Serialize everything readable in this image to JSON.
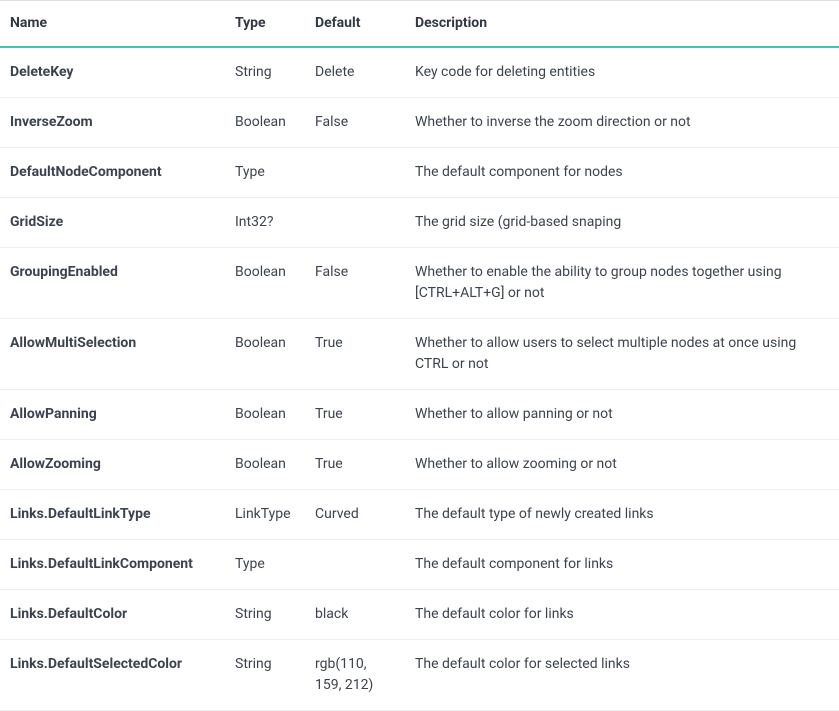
{
  "table": {
    "columns": [
      "Name",
      "Type",
      "Default",
      "Description"
    ],
    "header_border_bottom_color": "#40c3b7",
    "row_border_color": "#eceff1",
    "top_border_color": "#e0e0e0",
    "text_color": "#323944",
    "background_color": "#ffffff",
    "font_size": 14,
    "rows": [
      {
        "name": "DeleteKey",
        "type": "String",
        "default": "Delete",
        "description": "Key code for deleting entities"
      },
      {
        "name": "InverseZoom",
        "type": "Boolean",
        "default": "False",
        "description": "Whether to inverse the zoom direction or not"
      },
      {
        "name": "DefaultNodeComponent",
        "type": "Type",
        "default": "",
        "description": "The default component for nodes"
      },
      {
        "name": "GridSize",
        "type": "Int32?",
        "default": "",
        "description": "The grid size (grid-based snaping"
      },
      {
        "name": "GroupingEnabled",
        "type": "Boolean",
        "default": "False",
        "description": "Whether to enable the ability to group nodes together using [CTRL+ALT+G] or not"
      },
      {
        "name": "AllowMultiSelection",
        "type": "Boolean",
        "default": "True",
        "description": "Whether to allow users to select multiple nodes at once using CTRL or not"
      },
      {
        "name": "AllowPanning",
        "type": "Boolean",
        "default": "True",
        "description": "Whether to allow panning or not"
      },
      {
        "name": "AllowZooming",
        "type": "Boolean",
        "default": "True",
        "description": "Whether to allow zooming or not"
      },
      {
        "name": "Links.DefaultLinkType",
        "type": "LinkType",
        "default": "Curved",
        "description": "The default type of newly created links"
      },
      {
        "name": "Links.DefaultLinkComponent",
        "type": "Type",
        "default": "",
        "description": "The default component for links"
      },
      {
        "name": "Links.DefaultColor",
        "type": "String",
        "default": "black",
        "description": "The default color for links"
      },
      {
        "name": "Links.DefaultSelectedColor",
        "type": "String",
        "default": "rgb(110, 159, 212)",
        "description": "The default color for selected links"
      }
    ]
  }
}
